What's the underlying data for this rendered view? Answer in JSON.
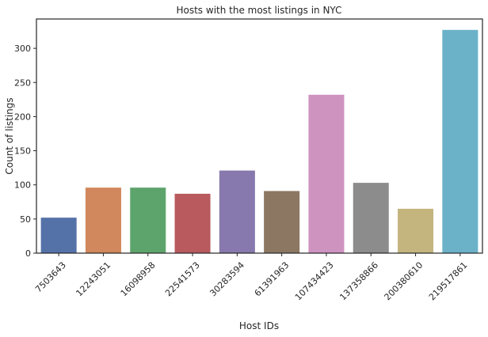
{
  "chart_data": {
    "type": "bar",
    "title": "Hosts with the most listings in NYC",
    "xlabel": "Host IDs",
    "ylabel": "Count of listings",
    "categories": [
      "7503643",
      "12243051",
      "16098958",
      "22541573",
      "30283594",
      "61391963",
      "107434423",
      "137358866",
      "200380610",
      "219517861"
    ],
    "values": [
      52,
      96,
      96,
      87,
      121,
      91,
      232,
      103,
      65,
      327
    ],
    "colors": [
      "#5572a8",
      "#d1885c",
      "#5da46c",
      "#b85a5e",
      "#8779ad",
      "#8c7763",
      "#cf93c0",
      "#8c8c8c",
      "#c4b57e",
      "#6bb2c9"
    ],
    "yticks": [
      0,
      50,
      100,
      150,
      200,
      250,
      300
    ],
    "ylim": [
      0,
      343
    ],
    "grid": false,
    "legend": "none"
  }
}
